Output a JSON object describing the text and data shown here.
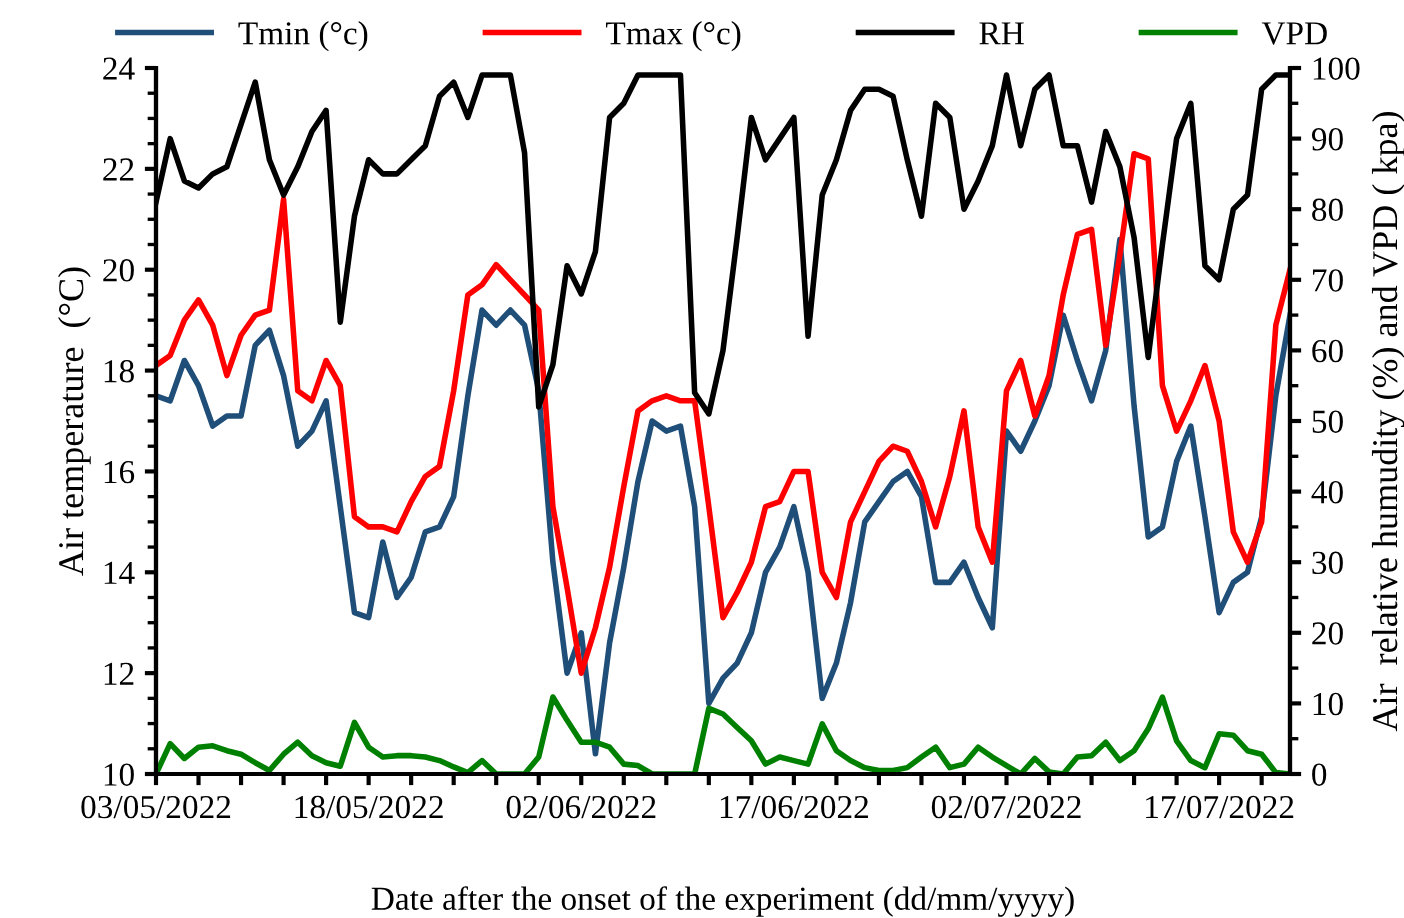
{
  "chart_data": {
    "type": "line",
    "xlabel": "Date after the onset of the experiment (dd/mm/yyyy)",
    "ylabel": "Air temperature  (°C)",
    "y2label": "Air  relative humudity (%) and VPD ( kpa)",
    "x": [
      "2022-05-03",
      "2022-05-04",
      "2022-05-05",
      "2022-05-06",
      "2022-05-07",
      "2022-05-08",
      "2022-05-09",
      "2022-05-10",
      "2022-05-11",
      "2022-05-12",
      "2022-05-13",
      "2022-05-14",
      "2022-05-15",
      "2022-05-16",
      "2022-05-17",
      "2022-05-18",
      "2022-05-19",
      "2022-05-20",
      "2022-05-21",
      "2022-05-22",
      "2022-05-23",
      "2022-05-24",
      "2022-05-25",
      "2022-05-26",
      "2022-05-27",
      "2022-05-28",
      "2022-05-29",
      "2022-05-30",
      "2022-05-31",
      "2022-06-01",
      "2022-06-02",
      "2022-06-03",
      "2022-06-04",
      "2022-06-05",
      "2022-06-06",
      "2022-06-07",
      "2022-06-08",
      "2022-06-09",
      "2022-06-10",
      "2022-06-11",
      "2022-06-12",
      "2022-06-13",
      "2022-06-14",
      "2022-06-15",
      "2022-06-16",
      "2022-06-17",
      "2022-06-18",
      "2022-06-19",
      "2022-06-20",
      "2022-06-21",
      "2022-06-22",
      "2022-06-23",
      "2022-06-24",
      "2022-06-25",
      "2022-06-26",
      "2022-06-27",
      "2022-06-28",
      "2022-06-29",
      "2022-06-30",
      "2022-07-01",
      "2022-07-02",
      "2022-07-03",
      "2022-07-04",
      "2022-07-05",
      "2022-07-06",
      "2022-07-07",
      "2022-07-08",
      "2022-07-09",
      "2022-07-10",
      "2022-07-11",
      "2022-07-12",
      "2022-07-13",
      "2022-07-14",
      "2022-07-15",
      "2022-07-16",
      "2022-07-17",
      "2022-07-18",
      "2022-07-19",
      "2022-07-20",
      "2022-07-21",
      "2022-07-22"
    ],
    "series": [
      {
        "name": "Tmin (°c)",
        "color": "#1f4e79",
        "values": [
          17.5,
          17.4,
          18.2,
          17.7,
          16.9,
          17.1,
          17.1,
          18.5,
          18.8,
          17.9,
          16.5,
          16.8,
          17.4,
          15.3,
          13.2,
          13.1,
          14.6,
          13.5,
          13.9,
          14.8,
          14.9,
          15.5,
          17.5,
          19.2,
          18.9,
          19.2,
          18.9,
          17.6,
          14.2,
          12.0,
          12.8,
          10.4,
          12.6,
          14.1,
          15.8,
          17.0,
          16.8,
          16.9,
          15.3,
          11.4,
          11.9,
          12.2,
          12.8,
          14.0,
          14.5,
          15.3,
          14.0,
          11.5,
          12.2,
          13.4,
          15.0,
          15.4,
          15.8,
          16.0,
          15.5,
          13.8,
          13.8,
          14.2,
          13.5,
          12.9,
          16.8,
          16.4,
          17.0,
          17.7,
          19.1,
          18.2,
          17.4,
          18.4,
          20.6,
          17.3,
          14.7,
          14.9,
          16.2,
          16.9,
          15.1,
          13.2,
          13.8,
          14.0,
          15.1,
          17.5,
          19.1
        ]
      },
      {
        "name": "Tmax (°c)",
        "color": "#ff0000",
        "values": [
          18.1,
          18.3,
          19.0,
          19.4,
          18.9,
          17.9,
          18.7,
          19.1,
          19.2,
          21.4,
          17.6,
          17.4,
          18.2,
          17.7,
          15.1,
          14.9,
          14.9,
          14.8,
          15.4,
          15.9,
          16.1,
          17.6,
          19.5,
          19.7,
          20.1,
          19.8,
          19.5,
          19.2,
          15.3,
          13.7,
          12.0,
          12.9,
          14.1,
          15.7,
          17.2,
          17.4,
          17.5,
          17.4,
          17.4,
          15.3,
          13.1,
          13.6,
          14.2,
          15.3,
          15.4,
          16.0,
          16.0,
          14.0,
          13.5,
          15.0,
          15.6,
          16.2,
          16.5,
          16.4,
          15.8,
          14.9,
          15.9,
          17.2,
          14.9,
          14.2,
          17.6,
          18.2,
          17.1,
          17.9,
          19.5,
          20.7,
          20.8,
          18.5,
          20.3,
          22.3,
          22.2,
          17.7,
          16.8,
          17.4,
          18.1,
          17.0,
          14.8,
          14.2,
          15.0,
          18.9,
          20.0
        ]
      },
      {
        "name": "RH",
        "color": "#000000",
        "axis": "y2",
        "values": [
          81,
          90,
          84,
          83,
          85,
          86,
          92,
          98,
          87,
          82,
          86,
          91,
          94,
          64,
          79,
          87,
          85,
          85,
          87,
          89,
          96,
          98,
          93,
          99,
          99,
          99,
          88,
          52,
          58,
          72,
          68,
          74,
          93,
          95,
          99,
          99,
          99,
          99,
          54,
          51,
          60,
          76,
          93,
          87,
          90,
          93,
          62,
          82,
          87,
          94,
          97,
          97,
          96,
          87,
          79,
          95,
          93,
          80,
          84,
          89,
          99,
          89,
          97,
          99,
          89,
          89,
          81,
          91,
          86,
          76,
          59,
          75,
          90,
          95,
          72,
          70,
          80,
          82,
          97,
          99,
          99
        ]
      },
      {
        "name": "VPD",
        "color": "#008000",
        "axis": "y2",
        "values": [
          0,
          4.3,
          2.2,
          3.8,
          4,
          3.3,
          2.8,
          1.6,
          0.5,
          2.8,
          4.5,
          2.6,
          1.6,
          1.1,
          7.3,
          3.8,
          2.4,
          2.6,
          2.6,
          2.4,
          1.9,
          1.0,
          0.2,
          1.9,
          0,
          0,
          0,
          2.4,
          10.9,
          7.6,
          4.5,
          4.5,
          3.8,
          1.4,
          1.2,
          0,
          0,
          0,
          0,
          9.3,
          8.5,
          6.6,
          4.7,
          1.4,
          2.4,
          1.9,
          1.4,
          7.1,
          3.3,
          1.9,
          0.9,
          0.5,
          0.5,
          0.9,
          2.4,
          3.8,
          0.9,
          1.4,
          3.8,
          2.4,
          1.2,
          0,
          2.2,
          0.3,
          0,
          2.4,
          2.6,
          4.5,
          1.9,
          3.3,
          6.4,
          10.9,
          4.7,
          1.9,
          0.9,
          5.7,
          5.5,
          3.3,
          2.8,
          0.2,
          0
        ]
      }
    ],
    "xlim": [
      "2022-05-03",
      "2022-07-22"
    ],
    "xticks": [
      {
        "value": "2022-05-03",
        "label": "03/05/2022"
      },
      {
        "value": "2022-05-06",
        "label": null
      },
      {
        "value": "2022-05-09",
        "label": null
      },
      {
        "value": "2022-05-12",
        "label": null
      },
      {
        "value": "2022-05-15",
        "label": null
      },
      {
        "value": "2022-05-18",
        "label": "18/05/2022"
      },
      {
        "value": "2022-05-21",
        "label": null
      },
      {
        "value": "2022-05-24",
        "label": null
      },
      {
        "value": "2022-05-27",
        "label": null
      },
      {
        "value": "2022-05-30",
        "label": null
      },
      {
        "value": "2022-06-02",
        "label": "02/06/2022"
      },
      {
        "value": "2022-06-05",
        "label": null
      },
      {
        "value": "2022-06-08",
        "label": null
      },
      {
        "value": "2022-06-11",
        "label": null
      },
      {
        "value": "2022-06-14",
        "label": null
      },
      {
        "value": "2022-06-17",
        "label": "17/06/2022"
      },
      {
        "value": "2022-06-20",
        "label": null
      },
      {
        "value": "2022-06-23",
        "label": null
      },
      {
        "value": "2022-06-26",
        "label": null
      },
      {
        "value": "2022-06-29",
        "label": null
      },
      {
        "value": "2022-07-02",
        "label": "02/07/2022"
      },
      {
        "value": "2022-07-05",
        "label": null
      },
      {
        "value": "2022-07-08",
        "label": null
      },
      {
        "value": "2022-07-11",
        "label": null
      },
      {
        "value": "2022-07-14",
        "label": null
      },
      {
        "value": "2022-07-17",
        "label": "17/07/2022"
      },
      {
        "value": "2022-07-20",
        "label": null
      }
    ],
    "ylim": [
      10,
      24
    ],
    "yticks": [
      10,
      12,
      14,
      16,
      18,
      20,
      22,
      24
    ],
    "y2lim": [
      0,
      100
    ],
    "y2ticks": [
      0,
      10,
      20,
      30,
      40,
      50,
      60,
      70,
      80,
      90,
      100
    ],
    "legend": "top",
    "grid": false,
    "marker": "none",
    "line_style": "solid"
  }
}
